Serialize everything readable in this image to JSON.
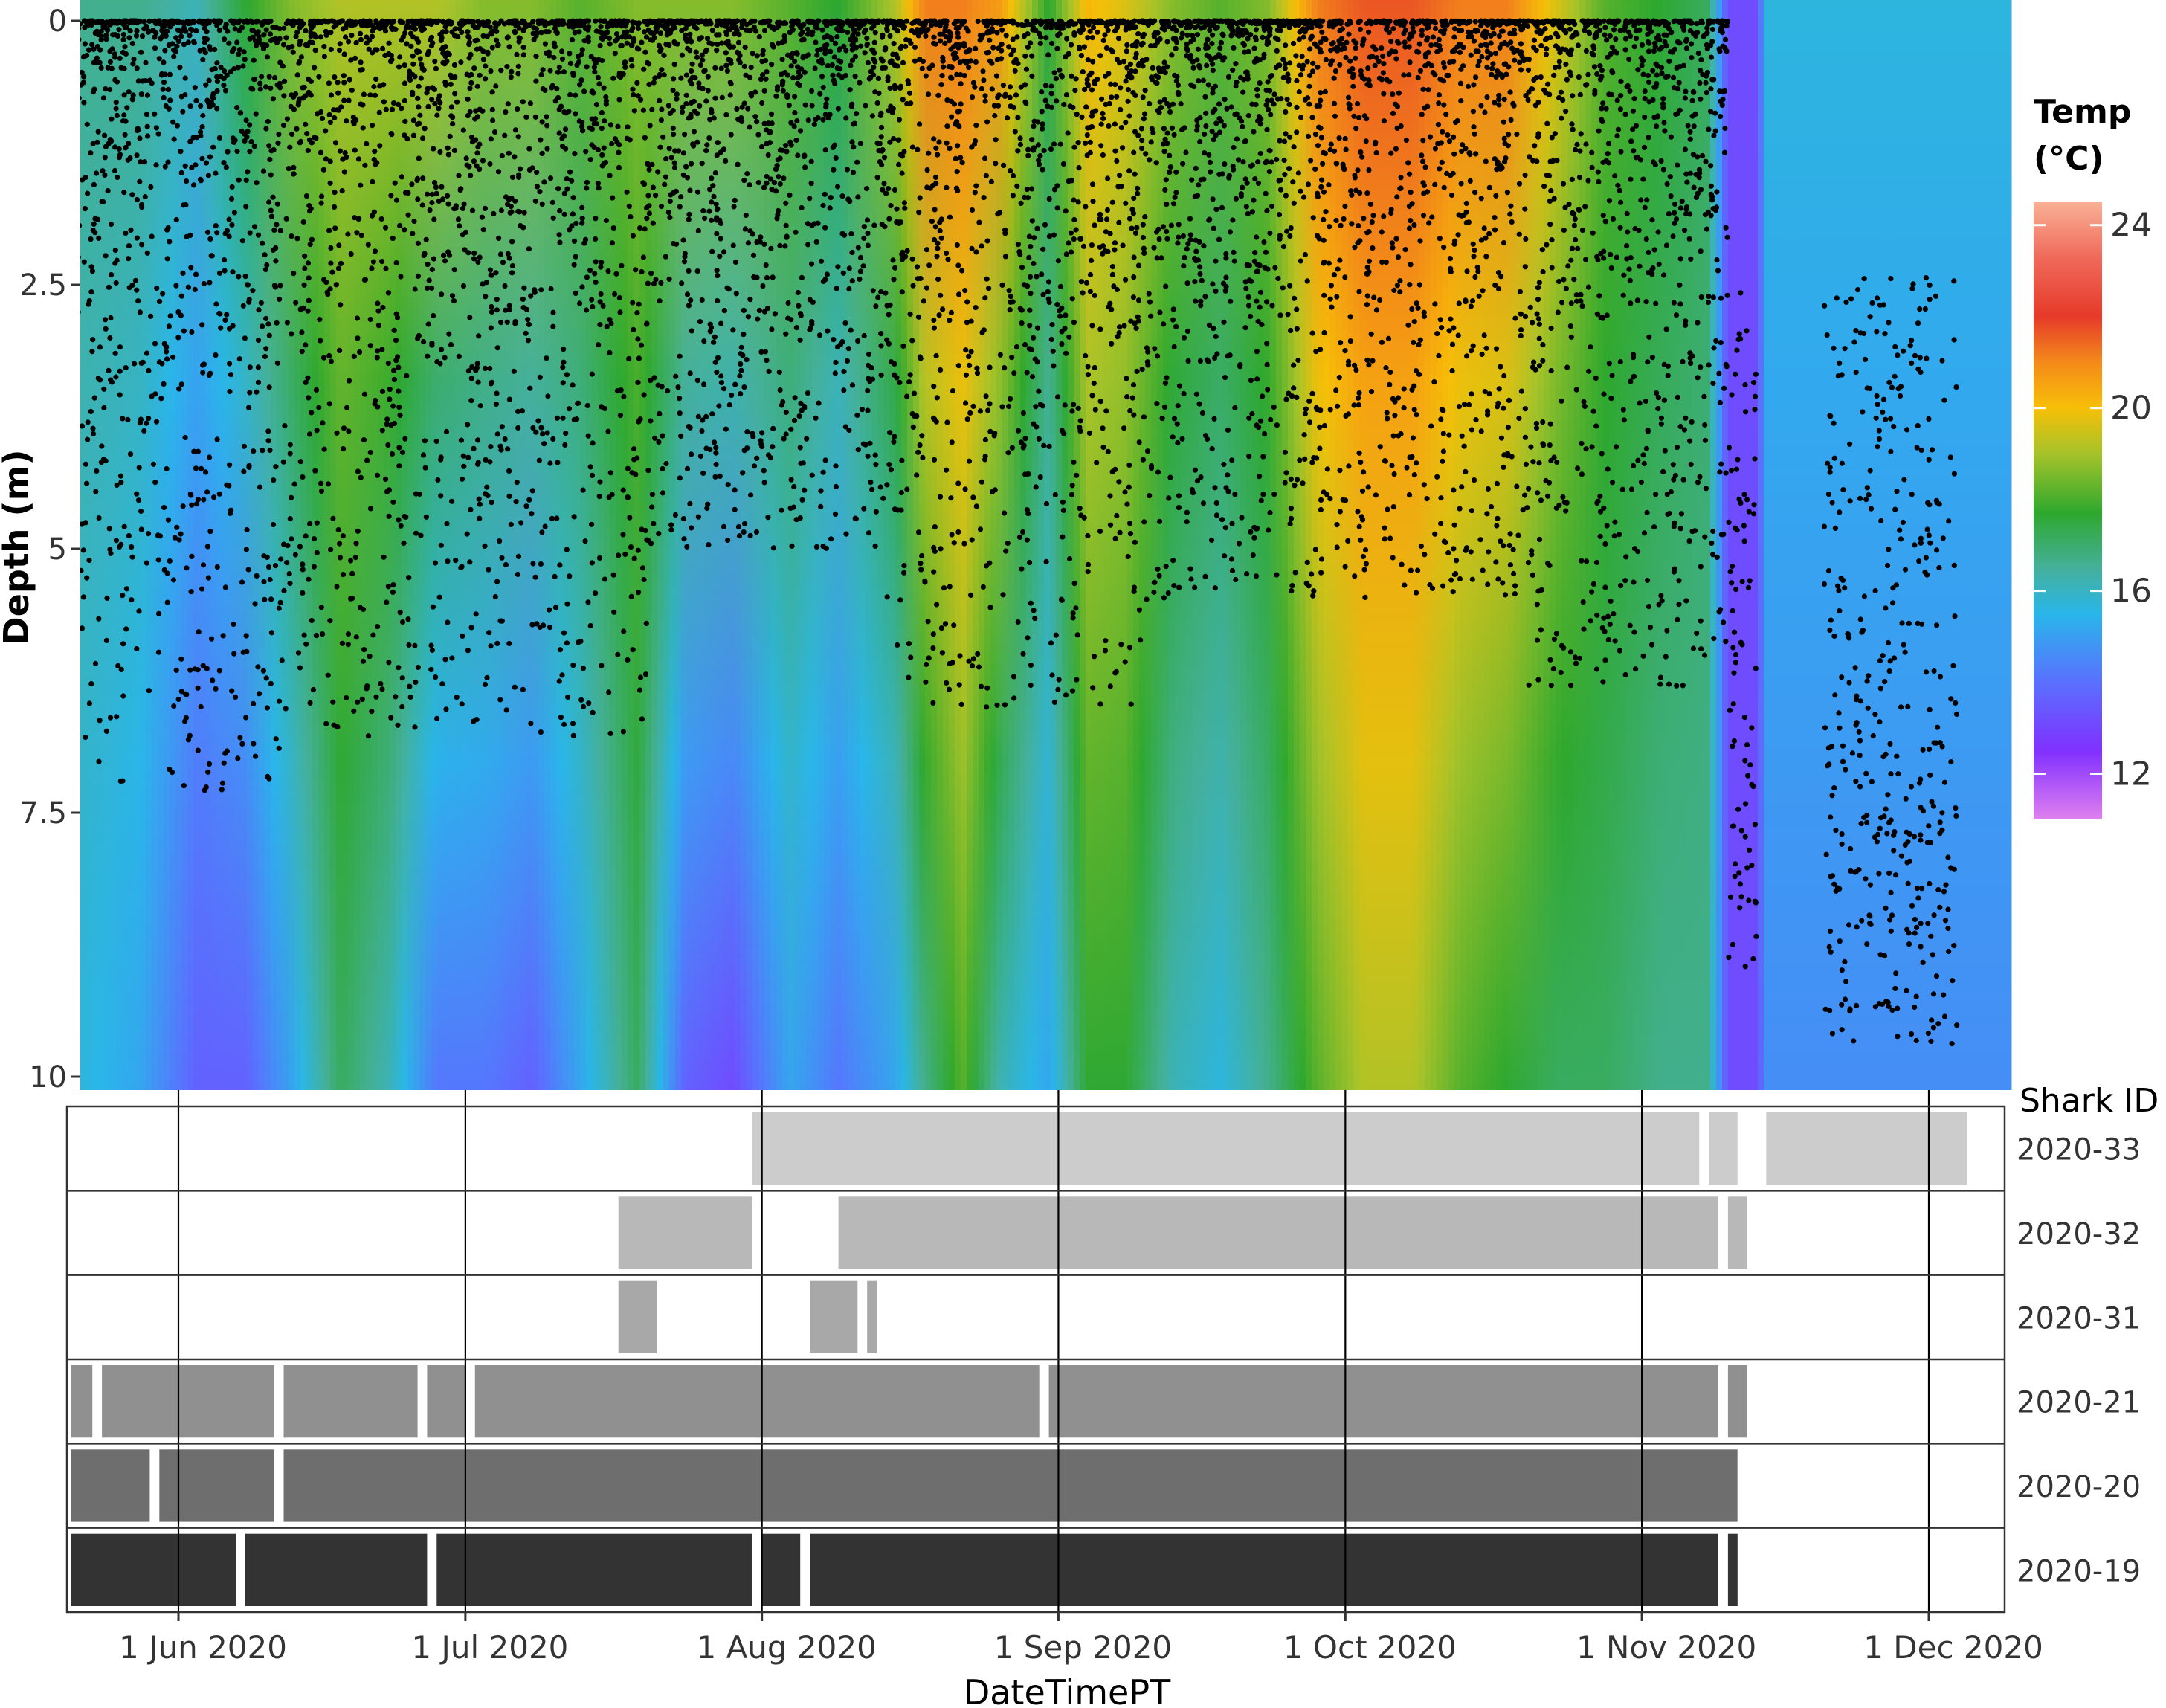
{
  "chart_data": [
    {
      "type": "heatmap",
      "panel": "depth-temperature",
      "ylabel": "Depth (m)",
      "y_ticks": [
        0,
        2.5,
        5,
        7.5,
        10
      ],
      "y_tick_labels": [
        "0",
        "2.5",
        "5",
        "7.5",
        "10"
      ],
      "ylim": [
        0,
        10.2
      ],
      "y_reversed": true,
      "xlim": [
        "2020-05-17",
        "2020-12-07"
      ],
      "color_scale": {
        "title_line1": "Temp",
        "title_line2": "(°C)",
        "range": [
          11,
          24.5
        ],
        "ticks": [
          12,
          16,
          20,
          24
        ],
        "tick_labels": [
          "12",
          "16",
          "20",
          "24"
        ],
        "stops": [
          {
            "value": 11,
            "color": "#e080f0"
          },
          {
            "value": 12.5,
            "color": "#8030ff"
          },
          {
            "value": 14,
            "color": "#5a70ff"
          },
          {
            "value": 15.5,
            "color": "#29b6ea"
          },
          {
            "value": 16.5,
            "color": "#45b09a"
          },
          {
            "value": 17.7,
            "color": "#2ea82e"
          },
          {
            "value": 19,
            "color": "#a6c32a"
          },
          {
            "value": 20,
            "color": "#f7bf07"
          },
          {
            "value": 21,
            "color": "#f48a1a"
          },
          {
            "value": 22,
            "color": "#e63a2a"
          },
          {
            "value": 23.3,
            "color": "#f06a5a"
          },
          {
            "value": 24.5,
            "color": "#f9b096"
          }
        ]
      },
      "temperature_profile": [
        {
          "date": "2020-05-17",
          "surface": 16.5,
          "bottom": 13.5
        },
        {
          "date": "2020-05-22",
          "surface": 16.5,
          "bottom": 15.5
        },
        {
          "date": "2020-05-28",
          "surface": 16.5,
          "bottom": 15.0
        },
        {
          "date": "2020-06-03",
          "surface": 16.0,
          "bottom": 13.5
        },
        {
          "date": "2020-06-08",
          "surface": 17.5,
          "bottom": 13.5
        },
        {
          "date": "2020-06-13",
          "surface": 18.5,
          "bottom": 15.0
        },
        {
          "date": "2020-06-18",
          "surface": 19.0,
          "bottom": 17.0
        },
        {
          "date": "2020-06-23",
          "surface": 19.0,
          "bottom": 16.0
        },
        {
          "date": "2020-06-28",
          "surface": 19.0,
          "bottom": 14.0
        },
        {
          "date": "2020-07-03",
          "surface": 18.5,
          "bottom": 14.0
        },
        {
          "date": "2020-07-08",
          "surface": 18.5,
          "bottom": 13.5
        },
        {
          "date": "2020-07-13",
          "surface": 18.0,
          "bottom": 15.0
        },
        {
          "date": "2020-07-19",
          "surface": 18.5,
          "bottom": 17.0
        },
        {
          "date": "2020-07-24",
          "surface": 18.5,
          "bottom": 13.5
        },
        {
          "date": "2020-07-29",
          "surface": 18.5,
          "bottom": 13.0
        },
        {
          "date": "2020-08-04",
          "surface": 18.0,
          "bottom": 15.0
        },
        {
          "date": "2020-08-09",
          "surface": 17.5,
          "bottom": 14.0
        },
        {
          "date": "2020-08-15",
          "surface": 19.0,
          "bottom": 15.0
        },
        {
          "date": "2020-08-18",
          "surface": 21.0,
          "bottom": 16.5
        },
        {
          "date": "2020-08-22",
          "surface": 21.0,
          "bottom": 18.0
        },
        {
          "date": "2020-08-26",
          "surface": 20.5,
          "bottom": 16.0
        },
        {
          "date": "2020-08-31",
          "surface": 17.5,
          "bottom": 15.0
        },
        {
          "date": "2020-09-04",
          "surface": 20.0,
          "bottom": 17.5
        },
        {
          "date": "2020-09-08",
          "surface": 19.5,
          "bottom": 17.5
        },
        {
          "date": "2020-09-13",
          "surface": 18.5,
          "bottom": 16.0
        },
        {
          "date": "2020-09-18",
          "surface": 18.0,
          "bottom": 15.5
        },
        {
          "date": "2020-09-23",
          "surface": 18.5,
          "bottom": 16.5
        },
        {
          "date": "2020-09-28",
          "surface": 21.0,
          "bottom": 18.0
        },
        {
          "date": "2020-10-03",
          "surface": 21.5,
          "bottom": 19.0
        },
        {
          "date": "2020-10-08",
          "surface": 21.5,
          "bottom": 19.0
        },
        {
          "date": "2020-10-13",
          "surface": 21.0,
          "bottom": 18.0
        },
        {
          "date": "2020-10-18",
          "surface": 21.0,
          "bottom": 17.5
        },
        {
          "date": "2020-10-23",
          "surface": 19.5,
          "bottom": 17.0
        },
        {
          "date": "2020-10-28",
          "surface": 18.0,
          "bottom": 17.0
        },
        {
          "date": "2020-11-03",
          "surface": 17.5,
          "bottom": 16.5
        },
        {
          "date": "2020-11-08",
          "surface": 17.0,
          "bottom": 16.5
        },
        {
          "date": "2020-11-10",
          "surface": 13.0,
          "bottom": 13.0
        },
        {
          "date": "2020-11-13",
          "surface": 13.0,
          "bottom": 13.0
        },
        {
          "date": "2020-11-14",
          "surface": 15.5,
          "bottom": 14.5
        },
        {
          "date": "2020-12-07",
          "surface": 15.5,
          "bottom": 14.5
        }
      ],
      "points": {
        "description_color": "#000000",
        "period_depths": [
          {
            "start": "2020-05-17",
            "end": "2020-06-12",
            "range": [
              0,
              7.3
            ]
          },
          {
            "start": "2020-06-12",
            "end": "2020-07-20",
            "range": [
              0,
              6.8
            ]
          },
          {
            "start": "2020-07-20",
            "end": "2020-08-14",
            "range": [
              0,
              5.0
            ]
          },
          {
            "start": "2020-08-14",
            "end": "2020-09-10",
            "range": [
              0,
              6.5
            ]
          },
          {
            "start": "2020-09-10",
            "end": "2020-10-20",
            "range": [
              0,
              5.5
            ]
          },
          {
            "start": "2020-10-20",
            "end": "2020-11-10",
            "range": [
              0,
              6.3
            ]
          },
          {
            "start": "2020-11-10",
            "end": "2020-11-13",
            "range": [
              2.5,
              9.0
            ]
          },
          {
            "start": "2020-11-20",
            "end": "2020-12-04",
            "range": [
              2.4,
              9.7
            ]
          }
        ]
      }
    },
    {
      "type": "presence-bars",
      "panel": "shark-detections",
      "xlabel": "DateTimePT",
      "legend_title": "Shark ID",
      "x_ticks": [
        "2020-06-01",
        "2020-07-01",
        "2020-08-01",
        "2020-09-01",
        "2020-10-01",
        "2020-11-01",
        "2020-12-01"
      ],
      "x_tick_labels": [
        "1 Jun 2020",
        "1 Jul 2020",
        "1 Aug 2020",
        "1 Sep 2020",
        "1 Oct 2020",
        "1 Nov 2020",
        "1 Dec 2020"
      ],
      "series": [
        {
          "name": "2020-33",
          "color": "#cccccc",
          "segments": [
            [
              "2020-07-31",
              "2020-11-07"
            ],
            [
              "2020-11-08",
              "2020-11-11"
            ],
            [
              "2020-11-14",
              "2020-12-05"
            ]
          ]
        },
        {
          "name": "2020-32",
          "color": "#b8b8b8",
          "segments": [
            [
              "2020-07-17",
              "2020-07-31"
            ],
            [
              "2020-08-09",
              "2020-11-09"
            ],
            [
              "2020-11-10",
              "2020-11-12"
            ]
          ]
        },
        {
          "name": "2020-31",
          "color": "#a8a8a8",
          "segments": [
            [
              "2020-07-17",
              "2020-07-21"
            ],
            [
              "2020-08-06",
              "2020-08-11"
            ],
            [
              "2020-08-12",
              "2020-08-13"
            ]
          ]
        },
        {
          "name": "2020-21",
          "color": "#909090",
          "segments": [
            [
              "2020-05-18",
              "2020-05-23"
            ],
            [
              "2020-05-24",
              "2020-06-11"
            ],
            [
              "2020-06-12",
              "2020-06-26"
            ],
            [
              "2020-06-27",
              "2020-07-01"
            ],
            [
              "2020-07-02",
              "2020-08-30"
            ],
            [
              "2020-08-31",
              "2020-11-09"
            ],
            [
              "2020-11-10",
              "2020-11-12"
            ]
          ]
        },
        {
          "name": "2020-20",
          "color": "#6e6e6e",
          "segments": [
            [
              "2020-05-18",
              "2020-05-29"
            ],
            [
              "2020-05-30",
              "2020-06-11"
            ],
            [
              "2020-06-12",
              "2020-11-11"
            ]
          ]
        },
        {
          "name": "2020-19",
          "color": "#333333",
          "segments": [
            [
              "2020-05-18",
              "2020-06-07"
            ],
            [
              "2020-06-08",
              "2020-06-27"
            ],
            [
              "2020-06-28",
              "2020-07-31"
            ],
            [
              "2020-08-01",
              "2020-08-05"
            ],
            [
              "2020-08-06",
              "2020-11-09"
            ],
            [
              "2020-11-10",
              "2020-11-11"
            ]
          ]
        }
      ]
    }
  ]
}
